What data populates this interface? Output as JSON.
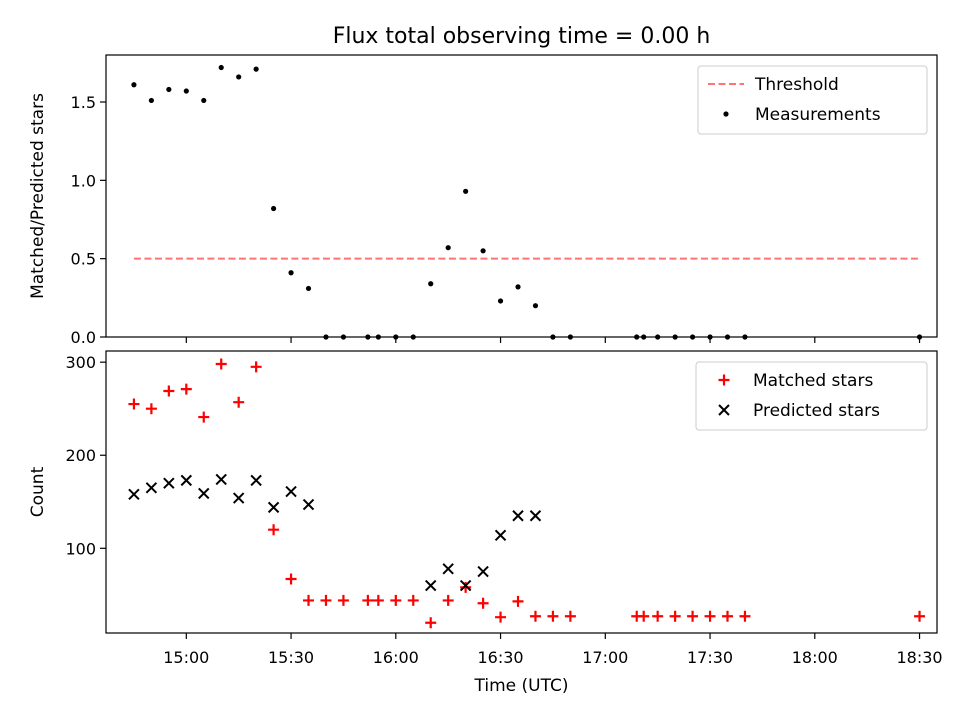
{
  "chart_data": {
    "type": "scatter",
    "title": "Flux total observing time = 0.00 h",
    "xlabel": "Time (UTC)",
    "x_ticks": [
      "15:00",
      "15:30",
      "16:00",
      "16:30",
      "17:00",
      "17:30",
      "18:00",
      "18:30"
    ],
    "xlim": [
      "14:37",
      "18:35"
    ],
    "panels": [
      {
        "id": "ratio",
        "ylabel": "Matched/Predicted stars",
        "ylim": [
          0,
          1.8
        ],
        "y_ticks": [
          "0.0",
          "0.5",
          "1.0",
          "1.5"
        ],
        "legend_position": "top-right",
        "series": [
          {
            "name": "Threshold",
            "kind": "line",
            "style": "dashed",
            "color": "#ff7373",
            "x": [
              "14:45",
              "18:30"
            ],
            "y": [
              0.5,
              0.5
            ]
          },
          {
            "name": "Measurements",
            "kind": "dot",
            "color": "#000000",
            "x": [
              "14:45",
              "14:50",
              "14:55",
              "15:00",
              "15:05",
              "15:10",
              "15:15",
              "15:20",
              "15:25",
              "15:30",
              "15:35",
              "15:40",
              "15:45",
              "15:52",
              "15:55",
              "16:00",
              "16:05",
              "16:10",
              "16:15",
              "16:20",
              "16:25",
              "16:30",
              "16:35",
              "16:40",
              "16:45",
              "16:50",
              "17:09",
              "17:11",
              "17:15",
              "17:20",
              "17:25",
              "17:30",
              "17:35",
              "17:40",
              "18:30"
            ],
            "y": [
              1.61,
              1.51,
              1.58,
              1.57,
              1.51,
              1.72,
              1.66,
              1.71,
              0.82,
              0.41,
              0.31,
              0,
              0,
              0,
              0,
              0,
              0,
              0.34,
              0.57,
              0.93,
              0.55,
              0.23,
              0.32,
              0.2,
              0,
              0,
              0,
              0,
              0,
              0,
              0,
              0,
              0,
              0,
              0
            ]
          }
        ]
      },
      {
        "id": "count",
        "ylabel": "Count",
        "ylim": [
          9,
          312
        ],
        "y_ticks": [
          "100",
          "200",
          "300"
        ],
        "legend_position": "top-right",
        "series": [
          {
            "name": "Matched stars",
            "kind": "plus",
            "color": "#ff0000",
            "x": [
              "14:45",
              "14:50",
              "14:55",
              "15:00",
              "15:05",
              "15:10",
              "15:15",
              "15:20",
              "15:25",
              "15:30",
              "15:35",
              "15:40",
              "15:45",
              "15:52",
              "15:55",
              "16:00",
              "16:05",
              "16:10",
              "16:15",
              "16:20",
              "16:25",
              "16:30",
              "16:35",
              "16:40",
              "16:45",
              "16:50",
              "17:09",
              "17:11",
              "17:15",
              "17:20",
              "17:25",
              "17:30",
              "17:35",
              "17:40",
              "18:30"
            ],
            "y": [
              255,
              250,
              269,
              271,
              241,
              298,
              257,
              295,
              120,
              67,
              44,
              44,
              44,
              44,
              44,
              44,
              44,
              20,
              44,
              58,
              41,
              26,
              43,
              27,
              27,
              27,
              27,
              27,
              27,
              27,
              27,
              27,
              27,
              27,
              27
            ]
          },
          {
            "name": "Predicted stars",
            "kind": "x",
            "color": "#000000",
            "x": [
              "14:45",
              "14:50",
              "14:55",
              "15:00",
              "15:05",
              "15:10",
              "15:15",
              "15:20",
              "15:25",
              "15:30",
              "15:35",
              "16:10",
              "16:15",
              "16:20",
              "16:25",
              "16:30",
              "16:35",
              "16:40"
            ],
            "y": [
              158,
              165,
              170,
              173,
              159,
              174,
              154,
              173,
              144,
              161,
              147,
              60,
              78,
              60,
              75,
              114,
              135,
              135
            ]
          }
        ]
      }
    ]
  }
}
